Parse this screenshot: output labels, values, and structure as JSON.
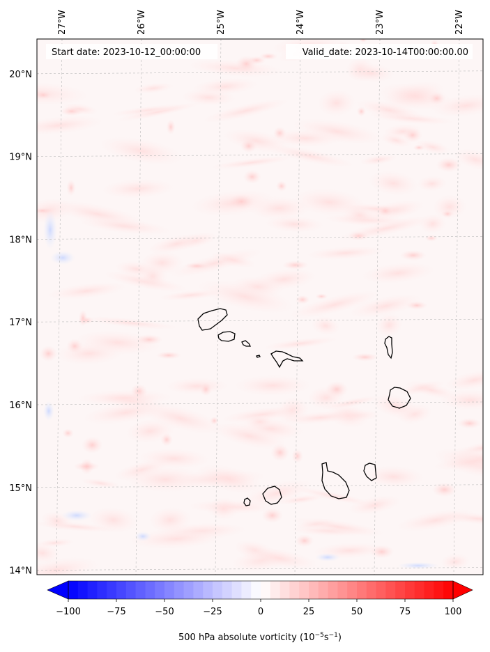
{
  "map": {
    "start_label": "Start date: 2023-10-12_00:00:00",
    "valid_label": "Valid_date: 2023-10-14T00:00:00.00",
    "lon_labels": [
      "27°W",
      "26°W",
      "25°W",
      "24°W",
      "23°W",
      "22°W"
    ],
    "lat_labels": [
      "20°N",
      "19°N",
      "18°N",
      "17°N",
      "16°N",
      "15°N",
      "14°N"
    ],
    "lon_values": [
      -27,
      -26,
      -25,
      -24,
      -23,
      -22
    ],
    "lat_values": [
      20,
      19,
      18,
      17,
      16,
      15,
      14
    ]
  },
  "colorbar": {
    "label_prefix": "500 hPa absolute vorticity (10",
    "label_exp1": "−5",
    "label_mid": "s",
    "label_exp2": "−1",
    "label_suffix": ")",
    "ticks": [
      -100,
      -75,
      -50,
      -25,
      0,
      25,
      50,
      75,
      100
    ],
    "tick_labels": [
      "−100",
      "−75",
      "−50",
      "−25",
      "0",
      "25",
      "50",
      "75",
      "100"
    ],
    "min": -100,
    "max": 100,
    "colors": {
      "negative": "#0000ff",
      "zero": "#ffffff",
      "positive": "#ff0000"
    }
  }
}
